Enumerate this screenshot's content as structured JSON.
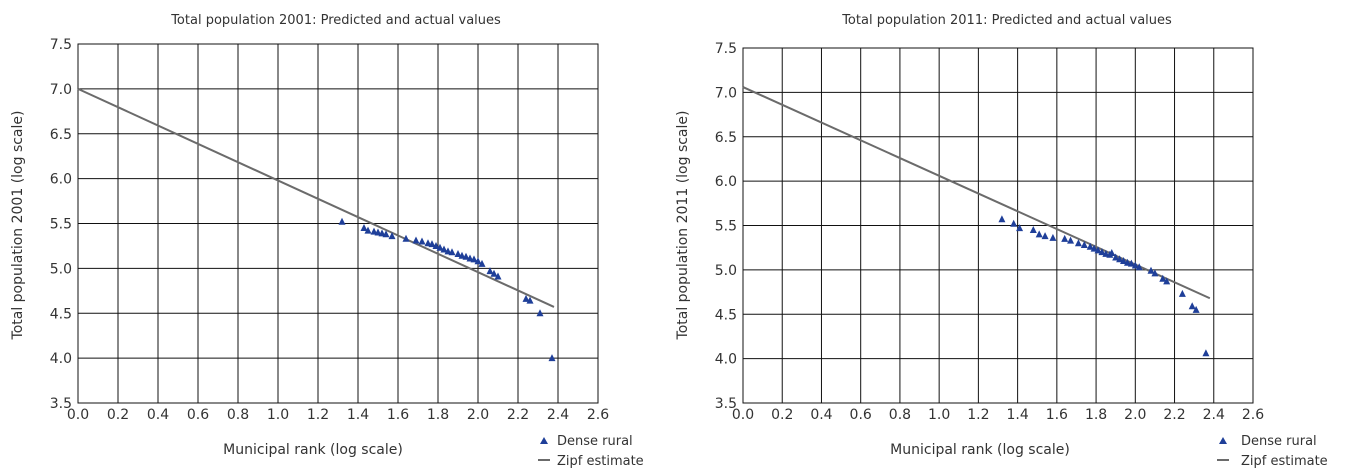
{
  "colors": {
    "points": "#1f3f99",
    "line": "#6b6b6b",
    "grid": "#111111"
  },
  "chart_data": [
    {
      "type": "scatter",
      "title": "Total population 2001: Predicted and actual values",
      "xlabel": "Municipal rank (log scale)",
      "ylabel": "Total population 2001 (log scale)",
      "xlim": [
        0.0,
        2.6
      ],
      "ylim": [
        3.5,
        7.5
      ],
      "x_ticks": [
        "0.0",
        "0.2",
        "0.4",
        "0.6",
        "0.8",
        "1.0",
        "1.2",
        "1.4",
        "1.6",
        "1.8",
        "2.0",
        "2.2",
        "2.4",
        "2.6"
      ],
      "y_ticks": [
        "3.5",
        "4.0",
        "4.5",
        "5.0",
        "5.5",
        "6.0",
        "6.5",
        "7.0",
        "7.5"
      ],
      "grid": true,
      "legend_position": "bottom-right",
      "series": [
        {
          "name": "Dense rural",
          "kind": "points",
          "marker": "triangle",
          "x": [
            1.32,
            1.43,
            1.45,
            1.48,
            1.5,
            1.52,
            1.54,
            1.57,
            1.64,
            1.69,
            1.72,
            1.75,
            1.77,
            1.79,
            1.81,
            1.83,
            1.85,
            1.87,
            1.9,
            1.92,
            1.94,
            1.96,
            1.98,
            2.0,
            2.02,
            2.06,
            2.08,
            2.1,
            2.24,
            2.26,
            2.31,
            2.37
          ],
          "y": [
            5.52,
            5.45,
            5.42,
            5.41,
            5.4,
            5.39,
            5.38,
            5.36,
            5.33,
            5.31,
            5.3,
            5.28,
            5.27,
            5.25,
            5.23,
            5.21,
            5.19,
            5.18,
            5.16,
            5.14,
            5.13,
            5.11,
            5.1,
            5.08,
            5.05,
            4.97,
            4.94,
            4.91,
            4.66,
            4.64,
            4.5,
            4.0
          ]
        },
        {
          "name": "Zipf estimate",
          "kind": "line",
          "x": [
            0.0,
            2.38
          ],
          "y": [
            7.0,
            4.57
          ]
        }
      ]
    },
    {
      "type": "scatter",
      "title": "Total population 2011: Predicted and actual values",
      "xlabel": "Municipal rank (log scale)",
      "ylabel": "Total population 2011 (log scale)",
      "xlim": [
        0.0,
        2.6
      ],
      "ylim": [
        3.5,
        7.5
      ],
      "x_ticks": [
        "0.0",
        "0.2",
        "0.4",
        "0.6",
        "0.8",
        "1.0",
        "1.2",
        "1.4",
        "1.6",
        "1.8",
        "2.0",
        "2.2",
        "2.4",
        "2.6"
      ],
      "y_ticks": [
        "3.5",
        "4.0",
        "4.5",
        "5.0",
        "5.5",
        "6.0",
        "6.5",
        "7.0",
        "7.5"
      ],
      "grid": true,
      "legend_position": "bottom-right",
      "series": [
        {
          "name": "Dense rural",
          "kind": "points",
          "marker": "triangle",
          "x": [
            1.32,
            1.38,
            1.41,
            1.48,
            1.51,
            1.54,
            1.58,
            1.64,
            1.67,
            1.71,
            1.74,
            1.77,
            1.79,
            1.81,
            1.83,
            1.85,
            1.87,
            1.88,
            1.9,
            1.92,
            1.94,
            1.96,
            1.98,
            2.0,
            2.02,
            2.08,
            2.1,
            2.14,
            2.16,
            2.24,
            2.29,
            2.31,
            2.36
          ],
          "y": [
            5.57,
            5.52,
            5.47,
            5.45,
            5.4,
            5.38,
            5.36,
            5.35,
            5.33,
            5.3,
            5.28,
            5.26,
            5.24,
            5.22,
            5.2,
            5.18,
            5.17,
            5.19,
            5.14,
            5.12,
            5.1,
            5.08,
            5.07,
            5.05,
            5.03,
            4.99,
            4.96,
            4.9,
            4.87,
            4.73,
            4.59,
            4.55,
            4.06
          ]
        },
        {
          "name": "Zipf estimate",
          "kind": "line",
          "x": [
            0.0,
            2.38
          ],
          "y": [
            7.06,
            4.68
          ]
        }
      ]
    }
  ]
}
